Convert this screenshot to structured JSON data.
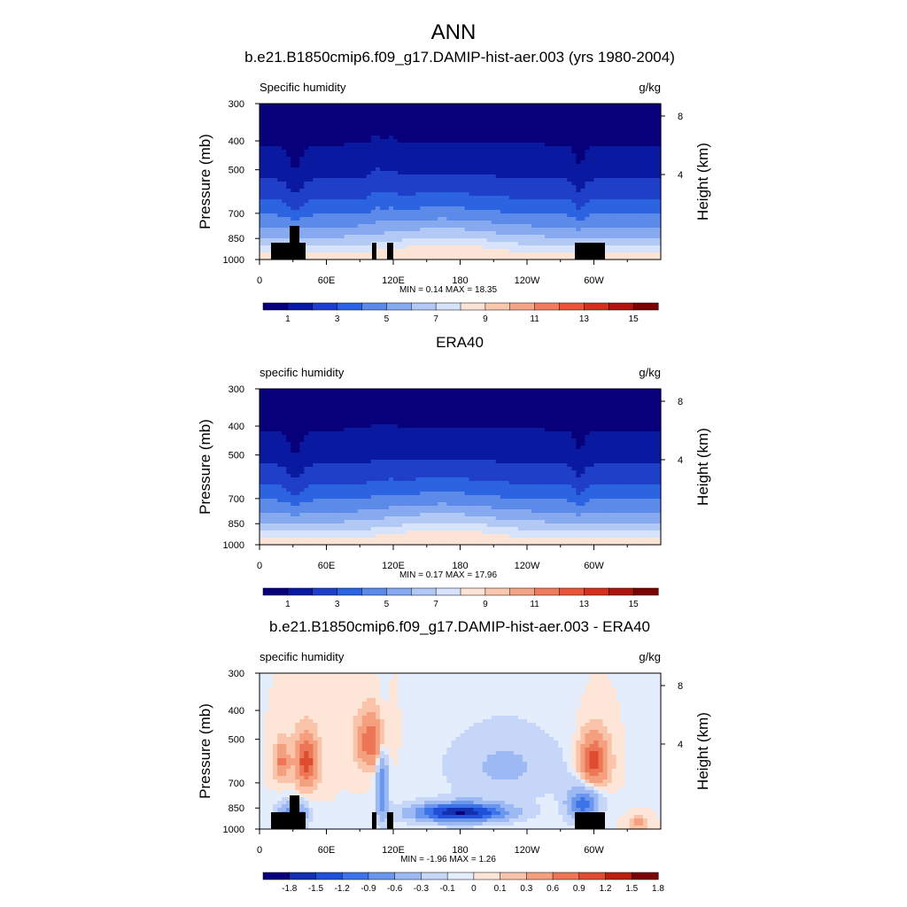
{
  "page_title": "ANN",
  "colors": {
    "abs_scale": [
      "#08007a",
      "#0a1aa0",
      "#1f3fc9",
      "#2b63e0",
      "#5b8ae8",
      "#86a9ef",
      "#b2c9f5",
      "#d6e3fa",
      "#fbe3d6",
      "#f7c7ae",
      "#f4a588",
      "#ef7c5f",
      "#e8553b",
      "#d2311f",
      "#ab1610",
      "#7a0403"
    ],
    "diff_scale": [
      "#08007a",
      "#1230b0",
      "#2150d8",
      "#3d73e8",
      "#6b96ee",
      "#9cb9f3",
      "#c5d6f8",
      "#e4edfc",
      "#fde5d7",
      "#f9c4aa",
      "#f4a07f",
      "#ec7656",
      "#de4c31",
      "#b9200f",
      "#7a0403"
    ],
    "terrain": "#000000"
  },
  "chart_data": [
    {
      "type": "contour",
      "title": "b.e21.B1850cmip6.f09_g17.DAMIP-hist-aer.003 (yrs 1980-2004)",
      "variable_label": "Specific humidity",
      "units": "g/kg",
      "ylabel": "Pressure (mb)",
      "ylabel_right": "Height (km)",
      "x_ticks": [
        "0",
        "60E",
        "120E",
        "180",
        "120W",
        "60W"
      ],
      "x_tick_lon": [
        0,
        60,
        120,
        180,
        240,
        300
      ],
      "x_range": [
        0,
        360
      ],
      "y_ticks": [
        "300",
        "400",
        "500",
        "700",
        "850",
        "1000"
      ],
      "y_tick_p": [
        300,
        400,
        500,
        700,
        850,
        1000
      ],
      "y_range": [
        300,
        1000
      ],
      "right_ticks": [
        "8",
        "4"
      ],
      "right_tick_km": [
        8,
        4
      ],
      "minmax_text": "MIN =   0.14  MAX =  18.35",
      "min": 0.14,
      "max": 18.35,
      "colorbar_labels": [
        "1",
        "3",
        "5",
        "7",
        "9",
        "11",
        "13",
        "15"
      ],
      "colorbar_levels": [
        1,
        3,
        5,
        7,
        9,
        11,
        13,
        15
      ],
      "terrain_mask": true
    },
    {
      "type": "contour",
      "title": "ERA40",
      "variable_label": "specific humidity",
      "units": "g/kg",
      "ylabel": "Pressure (mb)",
      "ylabel_right": "Height (km)",
      "x_ticks": [
        "0",
        "60E",
        "120E",
        "180",
        "120W",
        "60W"
      ],
      "x_tick_lon": [
        0,
        60,
        120,
        180,
        240,
        300
      ],
      "x_range": [
        0,
        360
      ],
      "y_ticks": [
        "300",
        "400",
        "500",
        "700",
        "850",
        "1000"
      ],
      "y_tick_p": [
        300,
        400,
        500,
        700,
        850,
        1000
      ],
      "y_range": [
        300,
        1000
      ],
      "right_ticks": [
        "8",
        "4"
      ],
      "right_tick_km": [
        8,
        4
      ],
      "minmax_text": "MIN =   0.17  MAX =  17.96",
      "min": 0.17,
      "max": 17.96,
      "colorbar_labels": [
        "1",
        "3",
        "5",
        "7",
        "9",
        "11",
        "13",
        "15"
      ],
      "colorbar_levels": [
        1,
        3,
        5,
        7,
        9,
        11,
        13,
        15
      ],
      "terrain_mask": false
    },
    {
      "type": "contour",
      "title": "b.e21.B1850cmip6.f09_g17.DAMIP-hist-aer.003 - ERA40",
      "variable_label": "specific humidity",
      "units": "g/kg",
      "ylabel": "Pressure (mb)",
      "ylabel_right": "Height (km)",
      "x_ticks": [
        "0",
        "60E",
        "120E",
        "180",
        "120W",
        "60W"
      ],
      "x_tick_lon": [
        0,
        60,
        120,
        180,
        240,
        300
      ],
      "x_range": [
        0,
        360
      ],
      "y_ticks": [
        "300",
        "400",
        "500",
        "700",
        "850",
        "1000"
      ],
      "y_tick_p": [
        300,
        400,
        500,
        700,
        850,
        1000
      ],
      "y_range": [
        300,
        1000
      ],
      "right_ticks": [
        "8",
        "4"
      ],
      "right_tick_km": [
        8,
        4
      ],
      "minmax_text": "MIN =  -1.96  MAX =   1.26",
      "min": -1.96,
      "max": 1.26,
      "colorbar_labels": [
        "-1.8",
        "-1.5",
        "-1.2",
        "-0.9",
        "-0.6",
        "-0.3",
        "-0.1",
        "0",
        "0.1",
        "0.3",
        "0.6",
        "0.9",
        "1.2",
        "1.5",
        "1.8"
      ],
      "colorbar_levels": [
        -1.8,
        -1.5,
        -1.2,
        -0.9,
        -0.6,
        -0.3,
        -0.1,
        0,
        0.1,
        0.3,
        0.6,
        0.9,
        1.2,
        1.5,
        1.8
      ],
      "terrain_mask": true
    }
  ]
}
